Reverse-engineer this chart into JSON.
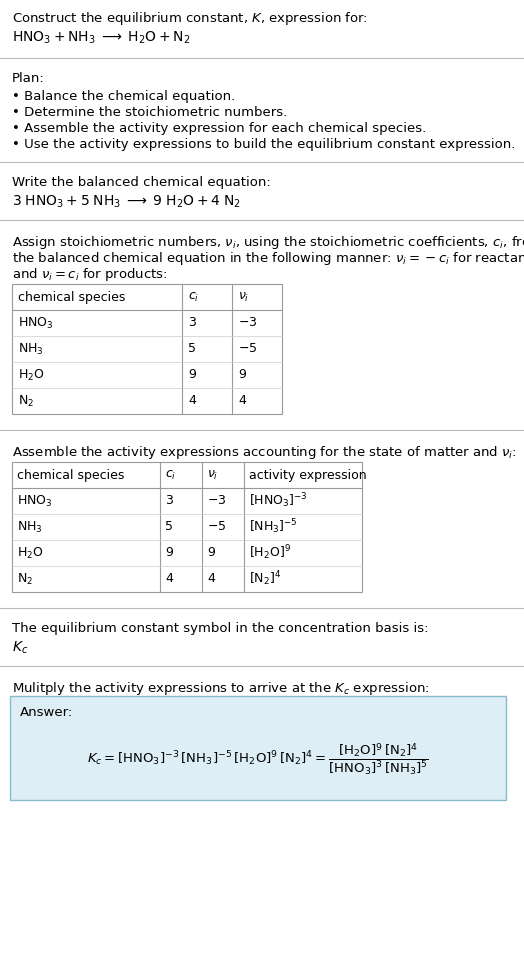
{
  "title_line1": "Construct the equilibrium constant, $K$, expression for:",
  "title_line2": "$\\mathrm{HNO_3 + NH_3 \\;\\longrightarrow\\; H_2O + N_2}$",
  "plan_header": "Plan:",
  "plan_bullets": [
    "• Balance the chemical equation.",
    "• Determine the stoichiometric numbers.",
    "• Assemble the activity expression for each chemical species.",
    "• Use the activity expressions to build the equilibrium constant expression."
  ],
  "balanced_header": "Write the balanced chemical equation:",
  "balanced_eq": "$\\mathrm{3\\; HNO_3 + 5\\; NH_3 \\;\\longrightarrow\\; 9\\; H_2O + 4\\; N_2}$",
  "stoich_para1": "Assign stoichiometric numbers, $\\nu_i$, using the stoichiometric coefficients, $c_i$, from",
  "stoich_para2": "the balanced chemical equation in the following manner: $\\nu_i = -c_i$ for reactants",
  "stoich_para3": "and $\\nu_i = c_i$ for products:",
  "table1_cols": [
    "chemical species",
    "$c_i$",
    "$\\nu_i$"
  ],
  "table1_rows": [
    [
      "$\\mathrm{HNO_3}$",
      "3",
      "$-3$"
    ],
    [
      "$\\mathrm{NH_3}$",
      "5",
      "$-5$"
    ],
    [
      "$\\mathrm{H_2O}$",
      "9",
      "9"
    ],
    [
      "$\\mathrm{N_2}$",
      "4",
      "4"
    ]
  ],
  "activity_header": "Assemble the activity expressions accounting for the state of matter and $\\nu_i$:",
  "table2_cols": [
    "chemical species",
    "$c_i$",
    "$\\nu_i$",
    "activity expression"
  ],
  "table2_rows": [
    [
      "$\\mathrm{HNO_3}$",
      "3",
      "$-3$",
      "$[\\mathrm{HNO_3}]^{-3}$"
    ],
    [
      "$\\mathrm{NH_3}$",
      "5",
      "$-5$",
      "$[\\mathrm{NH_3}]^{-5}$"
    ],
    [
      "$\\mathrm{H_2O}$",
      "9",
      "9",
      "$[\\mathrm{H_2O}]^{9}$"
    ],
    [
      "$\\mathrm{N_2}$",
      "4",
      "4",
      "$[\\mathrm{N_2}]^{4}$"
    ]
  ],
  "kc_header": "The equilibrium constant symbol in the concentration basis is:",
  "kc_symbol": "$K_c$",
  "multiply_header": "Mulitply the activity expressions to arrive at the $K_c$ expression:",
  "answer_label": "Answer:",
  "answer_line1": "$K_c = [\\mathrm{HNO_3}]^{-3}\\, [\\mathrm{NH_3}]^{-5}\\, [\\mathrm{H_2O}]^{9}\\, [\\mathrm{N_2}]^{4} = \\dfrac{[\\mathrm{H_2O}]^{9}\\, [\\mathrm{N_2}]^{4}}{[\\mathrm{HNO_3}]^{3}\\, [\\mathrm{NH_3}]^{5}}$",
  "bg_color": "#ffffff",
  "text_color": "#000000",
  "sep_color": "#bbbbbb",
  "table_edge_color": "#999999",
  "table_inner_color": "#cccccc",
  "answer_bg": "#ddeef6",
  "answer_border": "#88bbcc"
}
